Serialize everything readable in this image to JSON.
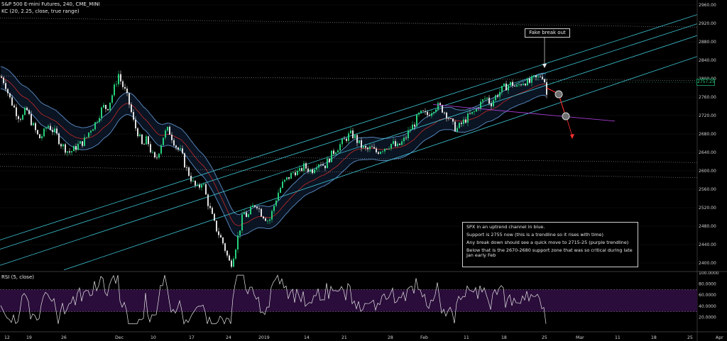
{
  "header": {
    "title": "S&P 500 E-mini Futures, 240, CME_MINI",
    "indicator": "KC (20, 2.25, close, true range)"
  },
  "annotations": {
    "fake_breakout": "Fake break out",
    "notes": [
      "SPX in an uptrend channel in blue.",
      "Support is 2755 now (this is a trendline so it rises with time)",
      "Any break down should see a quick move to 2715-25 (purple trendline)",
      "Below that is the 2670-2680 support zone that was so critical during late Jan early Feb"
    ],
    "current_price_label": "2757.25"
  },
  "rsi": {
    "label": "RSI (5, close)"
  },
  "colors": {
    "background": "#000000",
    "bull_candle": "#26d07c",
    "bear_candle": "#e0e0e0",
    "channel_blue": "#3fc6d8",
    "keltner": "#5d8fc9",
    "keltner_fill": "#0a1422",
    "mid_line": "#c62a2a",
    "purple_trendline": "#a63ccf",
    "arrow_red": "#ff3030",
    "rsi_line": "#e6e6e6",
    "rsi_band": "#2a0d3a"
  },
  "chart_data": {
    "type": "candlestick",
    "price_axis": {
      "ticks": [
        2960,
        2920,
        2880,
        2840,
        2800,
        2760,
        2720,
        2680,
        2640,
        2600,
        2560,
        2520,
        2480,
        2440,
        2400
      ],
      "tick_labels": [
        "2960.00",
        "2920.00",
        "2880.00",
        "2840.00",
        "2800.00",
        "2760.00",
        "2720.00",
        "2680.00",
        "2640.00",
        "2600.00",
        "2560.00",
        "2520.00",
        "2480.00",
        "2440.00",
        "2400.00"
      ],
      "range": [
        2385,
        2965
      ]
    },
    "date_axis": {
      "labels": [
        "12",
        "19",
        "26",
        "Dec",
        "10",
        "17",
        "24",
        "2019",
        "14",
        "21",
        "28",
        "Feb",
        "11",
        "18",
        "25",
        "Mar",
        "11",
        "18",
        "25",
        "Apr"
      ]
    },
    "price_path": [
      [
        0,
        2805
      ],
      [
        6,
        2790
      ],
      [
        12,
        2760
      ],
      [
        18,
        2740
      ],
      [
        24,
        2720
      ],
      [
        30,
        2715
      ],
      [
        36,
        2735
      ],
      [
        42,
        2710
      ],
      [
        48,
        2690
      ],
      [
        54,
        2670
      ],
      [
        60,
        2680
      ],
      [
        66,
        2700
      ],
      [
        72,
        2690
      ],
      [
        78,
        2680
      ],
      [
        84,
        2660
      ],
      [
        90,
        2650
      ],
      [
        96,
        2640
      ],
      [
        102,
        2645
      ],
      [
        108,
        2655
      ],
      [
        114,
        2660
      ],
      [
        120,
        2670
      ],
      [
        126,
        2690
      ],
      [
        132,
        2700
      ],
      [
        138,
        2720
      ],
      [
        144,
        2740
      ],
      [
        150,
        2735
      ],
      [
        156,
        2760
      ],
      [
        162,
        2790
      ],
      [
        166,
        2810
      ],
      [
        170,
        2790
      ],
      [
        176,
        2770
      ],
      [
        182,
        2740
      ],
      [
        188,
        2700
      ],
      [
        194,
        2680
      ],
      [
        200,
        2650
      ],
      [
        206,
        2670
      ],
      [
        212,
        2640
      ],
      [
        218,
        2620
      ],
      [
        224,
        2650
      ],
      [
        230,
        2680
      ],
      [
        236,
        2690
      ],
      [
        242,
        2670
      ],
      [
        248,
        2650
      ],
      [
        254,
        2640
      ],
      [
        260,
        2610
      ],
      [
        266,
        2590
      ],
      [
        272,
        2570
      ],
      [
        278,
        2560
      ],
      [
        284,
        2580
      ],
      [
        290,
        2540
      ],
      [
        296,
        2510
      ],
      [
        302,
        2480
      ],
      [
        308,
        2460
      ],
      [
        314,
        2440
      ],
      [
        320,
        2410
      ],
      [
        324,
        2395
      ],
      [
        330,
        2430
      ],
      [
        336,
        2470
      ],
      [
        342,
        2510
      ],
      [
        348,
        2500
      ],
      [
        354,
        2520
      ],
      [
        360,
        2530
      ],
      [
        366,
        2510
      ],
      [
        372,
        2500
      ],
      [
        378,
        2490
      ],
      [
        384,
        2520
      ],
      [
        390,
        2550
      ],
      [
        396,
        2570
      ],
      [
        402,
        2580
      ],
      [
        408,
        2590
      ],
      [
        414,
        2600
      ],
      [
        420,
        2595
      ],
      [
        426,
        2610
      ],
      [
        432,
        2605
      ],
      [
        438,
        2600
      ],
      [
        444,
        2615
      ],
      [
        450,
        2620
      ],
      [
        456,
        2610
      ],
      [
        462,
        2625
      ],
      [
        468,
        2640
      ],
      [
        474,
        2650
      ],
      [
        480,
        2660
      ],
      [
        486,
        2670
      ],
      [
        492,
        2680
      ],
      [
        498,
        2675
      ],
      [
        504,
        2660
      ],
      [
        510,
        2650
      ],
      [
        516,
        2645
      ],
      [
        522,
        2650
      ],
      [
        528,
        2640
      ],
      [
        534,
        2645
      ],
      [
        540,
        2650
      ],
      [
        546,
        2655
      ],
      [
        552,
        2660
      ],
      [
        558,
        2650
      ],
      [
        564,
        2660
      ],
      [
        570,
        2670
      ],
      [
        576,
        2690
      ],
      [
        582,
        2700
      ],
      [
        588,
        2720
      ],
      [
        594,
        2725
      ],
      [
        600,
        2720
      ],
      [
        606,
        2730
      ],
      [
        612,
        2740
      ],
      [
        618,
        2740
      ],
      [
        624,
        2730
      ],
      [
        630,
        2720
      ],
      [
        636,
        2700
      ],
      [
        642,
        2690
      ],
      [
        648,
        2700
      ],
      [
        654,
        2710
      ],
      [
        660,
        2720
      ],
      [
        666,
        2725
      ],
      [
        672,
        2740
      ],
      [
        678,
        2750
      ],
      [
        684,
        2760
      ],
      [
        690,
        2745
      ],
      [
        696,
        2760
      ],
      [
        702,
        2770
      ],
      [
        708,
        2780
      ],
      [
        714,
        2785
      ],
      [
        720,
        2790
      ],
      [
        726,
        2780
      ],
      [
        732,
        2790
      ],
      [
        738,
        2795
      ],
      [
        744,
        2790
      ],
      [
        750,
        2800
      ],
      [
        756,
        2800
      ],
      [
        762,
        2810
      ],
      [
        766,
        2795
      ],
      [
        769,
        2765
      ]
    ],
    "rsi_axis": {
      "ticks": [
        100,
        80,
        60,
        40,
        20
      ],
      "tick_labels": [
        "100.0000",
        "80.0000",
        "60.0000",
        "40.0000",
        "20.0000"
      ],
      "band": [
        30,
        70
      ]
    }
  }
}
